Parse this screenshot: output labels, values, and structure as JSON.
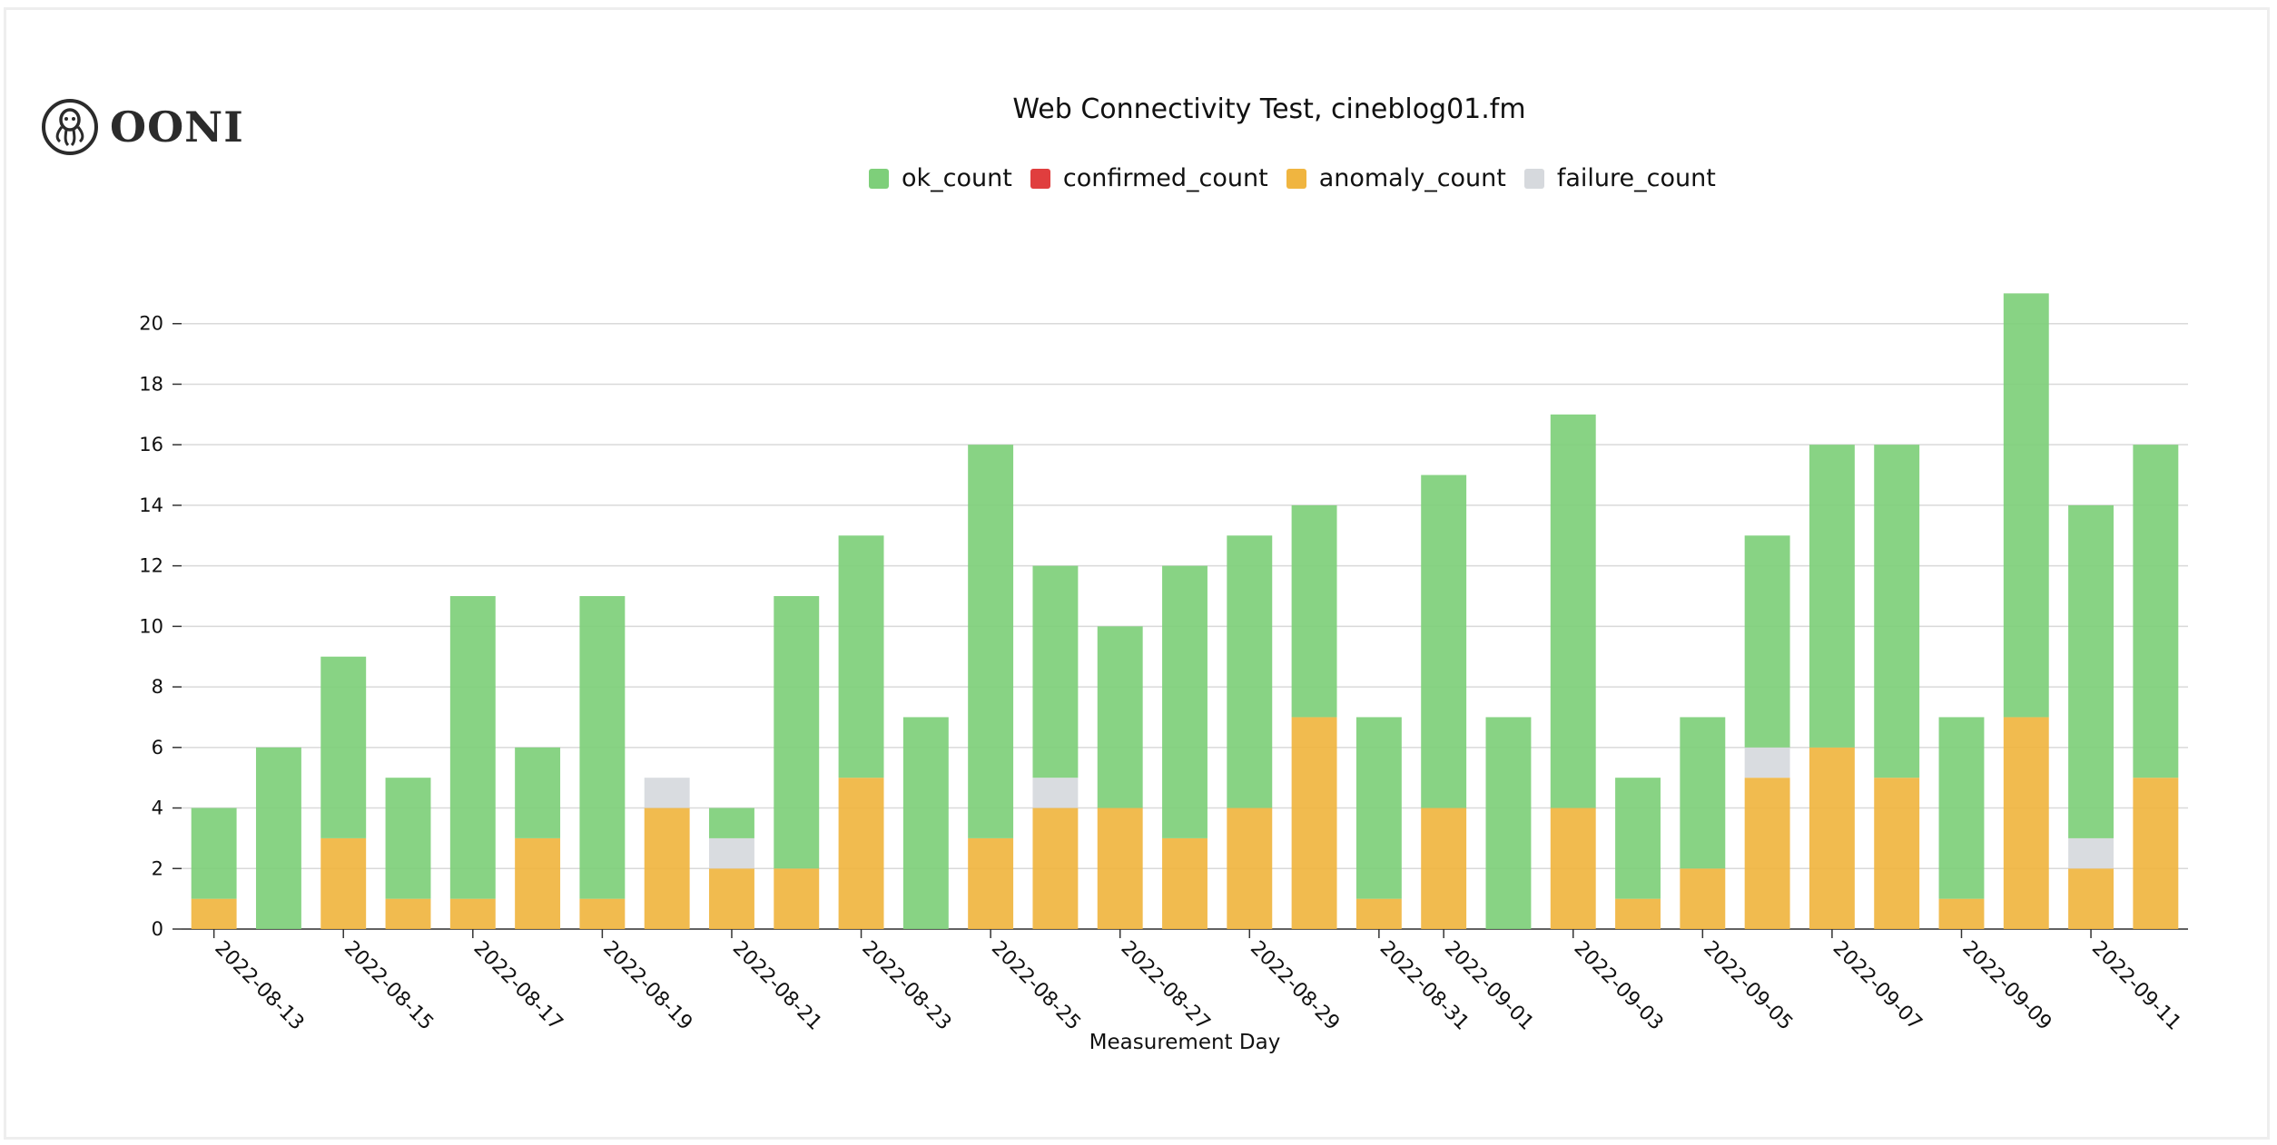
{
  "brand": {
    "name": "OONI",
    "icon": "octopus-icon"
  },
  "chart_data": {
    "type": "bar",
    "stacked": true,
    "title": "Web Connectivity Test, cineblog01.fm",
    "xlabel": "Measurement Day",
    "ylabel": "",
    "ylim": [
      0,
      22
    ],
    "yticks": [
      0,
      2,
      4,
      6,
      8,
      10,
      12,
      14,
      16,
      18,
      20
    ],
    "grid": true,
    "legend_position": "top",
    "categories": [
      "2022-08-13",
      "2022-08-14",
      "2022-08-15",
      "2022-08-16",
      "2022-08-17",
      "2022-08-18",
      "2022-08-19",
      "2022-08-20",
      "2022-08-21",
      "2022-08-22",
      "2022-08-23",
      "2022-08-24",
      "2022-08-25",
      "2022-08-26",
      "2022-08-27",
      "2022-08-28",
      "2022-08-29",
      "2022-08-30",
      "2022-08-31",
      "2022-09-01",
      "2022-09-02",
      "2022-09-03",
      "2022-09-04",
      "2022-09-05",
      "2022-09-06",
      "2022-09-07",
      "2022-09-08",
      "2022-09-09",
      "2022-09-10",
      "2022-09-11",
      "2022-09-12"
    ],
    "x_tick_labels": [
      "2022-08-13",
      "2022-08-15",
      "2022-08-17",
      "2022-08-19",
      "2022-08-21",
      "2022-08-23",
      "2022-08-25",
      "2022-08-27",
      "2022-08-29",
      "2022-08-31",
      "2022-09-01",
      "2022-09-03",
      "2022-09-05",
      "2022-09-07",
      "2022-09-09",
      "2022-09-11"
    ],
    "series": [
      {
        "name": "anomaly_count",
        "color": "#f0b540",
        "values": [
          1,
          0,
          3,
          1,
          1,
          3,
          1,
          4,
          2,
          2,
          5,
          0,
          3,
          4,
          4,
          3,
          4,
          7,
          1,
          4,
          0,
          4,
          1,
          2,
          5,
          6,
          5,
          1,
          7,
          2,
          5
        ]
      },
      {
        "name": "confirmed_count",
        "color": "#e03e3e",
        "values": [
          0,
          0,
          0,
          0,
          0,
          0,
          0,
          0,
          0,
          0,
          0,
          0,
          0,
          0,
          0,
          0,
          0,
          0,
          0,
          0,
          0,
          0,
          0,
          0,
          0,
          0,
          0,
          0,
          0,
          0,
          0
        ]
      },
      {
        "name": "failure_count",
        "color": "#d6d9dd",
        "values": [
          0,
          0,
          0,
          0,
          0,
          0,
          0,
          1,
          1,
          0,
          0,
          0,
          0,
          1,
          0,
          0,
          0,
          0,
          0,
          0,
          0,
          0,
          0,
          0,
          1,
          0,
          0,
          0,
          0,
          1,
          0
        ]
      },
      {
        "name": "ok_count",
        "color": "#7ecf7a",
        "values": [
          3,
          6,
          6,
          4,
          10,
          3,
          10,
          0,
          1,
          9,
          8,
          7,
          13,
          7,
          6,
          9,
          9,
          7,
          6,
          11,
          7,
          13,
          4,
          5,
          7,
          10,
          11,
          6,
          14,
          11,
          11
        ]
      }
    ],
    "legend": [
      {
        "label": "ok_count",
        "color": "#7ecf7a"
      },
      {
        "label": "confirmed_count",
        "color": "#e03e3e"
      },
      {
        "label": "anomaly_count",
        "color": "#f0b540"
      },
      {
        "label": "failure_count",
        "color": "#d6d9dd"
      }
    ]
  }
}
